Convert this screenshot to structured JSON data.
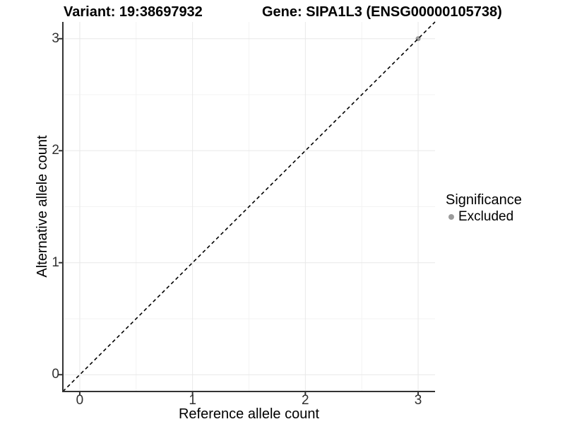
{
  "header": {
    "title_left": "Variant: 19:38697932",
    "title_right": "Gene: SIPA1L3 (ENSG00000105738)"
  },
  "chart_data": {
    "type": "scatter",
    "title": "Variant: 19:38697932   Gene: SIPA1L3 (ENSG00000105738)",
    "xlabel": "Reference allele count",
    "ylabel": "Alternative allele count",
    "xlim": [
      -0.15,
      3.15
    ],
    "ylim": [
      -0.15,
      3.15
    ],
    "x_ticks": [
      0,
      1,
      2,
      3
    ],
    "y_ticks": [
      0,
      1,
      2,
      3
    ],
    "x_minor_ticks": [
      0.5,
      1.5,
      2.5
    ],
    "y_minor_ticks": [
      0.5,
      1.5,
      2.5
    ],
    "grid": true,
    "series": [
      {
        "name": "Excluded",
        "points": [
          {
            "x": 3,
            "y": 3
          }
        ]
      }
    ],
    "reference_line": {
      "type": "identity",
      "slope": 1,
      "intercept": 0,
      "style": "dashed"
    },
    "legend": {
      "title": "Significance",
      "position": "right",
      "items": [
        {
          "label": "Excluded",
          "color": "#9b9b9b"
        }
      ]
    },
    "colors": {
      "point_excluded": "#9b9b9b",
      "grid_major": "#e8e8e8",
      "grid_minor": "#f3f3f3",
      "axis_line": "#333333",
      "tick_mark": "#333333",
      "tick_text": "#303030",
      "dashed_line": "#000000",
      "background": "#ffffff"
    }
  }
}
